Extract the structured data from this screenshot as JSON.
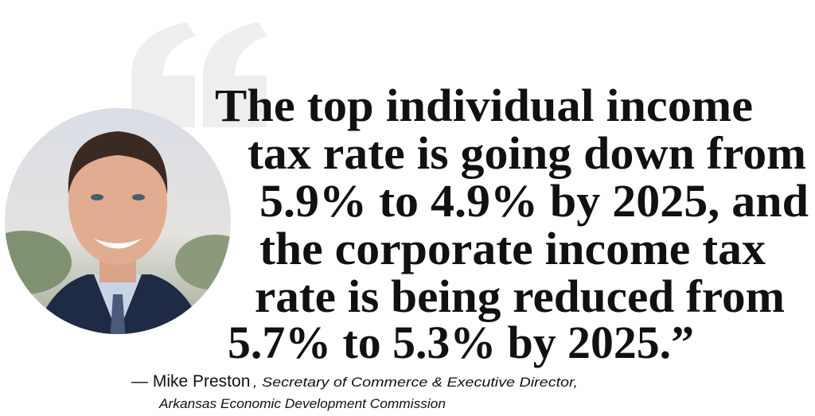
{
  "quote": {
    "lines": [
      "The top individual income",
      "tax rate is going down from",
      "5.9% to 4.9% by 2025, and",
      "the corporate income tax",
      "rate is being reduced from",
      "5.7% to 5.3% by 2025.”"
    ]
  },
  "attribution": {
    "name": "— Mike Preston",
    "title_line_1": ", Secretary of Commerce & Executive Director,",
    "title_line_2": "Arkansas Economic Development Commission"
  }
}
